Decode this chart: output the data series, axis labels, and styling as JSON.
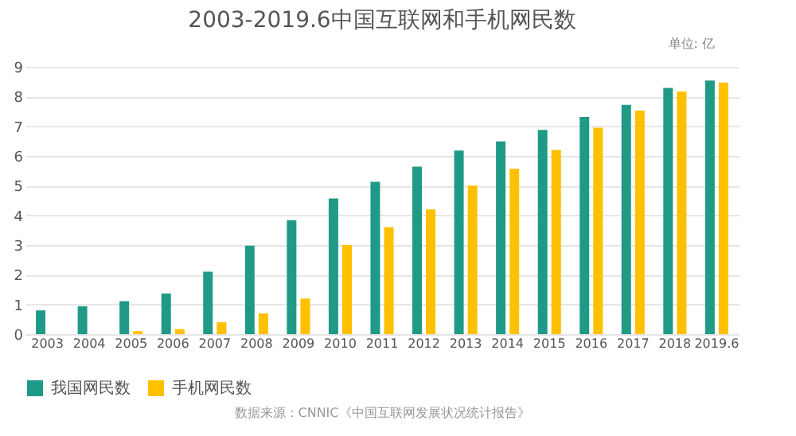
{
  "chart_data": {
    "type": "bar",
    "title": "2003-2019.6中国互联网和手机网民数",
    "annotations": [
      "单位: 亿",
      "数据来源：CNNIC《中国互联网发展状况统计报告》"
    ],
    "categories": [
      "2003",
      "2004",
      "2005",
      "2006",
      "2007",
      "2008",
      "2009",
      "2010",
      "2011",
      "2012",
      "2013",
      "2014",
      "2015",
      "2016",
      "2017",
      "2018",
      "2019.6"
    ],
    "series": [
      {
        "name": "我国网民数",
        "color": "#1f9a86",
        "values": [
          0.8,
          0.94,
          1.11,
          1.37,
          2.1,
          2.98,
          3.84,
          4.57,
          5.13,
          5.64,
          6.18,
          6.49,
          6.88,
          7.31,
          7.72,
          8.29,
          8.54
        ]
      },
      {
        "name": "手机网民数",
        "color": "#ffc000",
        "values": [
          null,
          null,
          0.1,
          0.17,
          0.4,
          0.7,
          1.2,
          3.0,
          3.6,
          4.2,
          5.0,
          5.57,
          6.2,
          6.95,
          7.53,
          8.17,
          8.47
        ]
      }
    ],
    "ylim": [
      0,
      9
    ],
    "yticks": [
      0,
      1,
      2,
      3,
      4,
      5,
      6,
      7,
      8,
      9
    ],
    "grid": "y",
    "legend": "bottom"
  }
}
